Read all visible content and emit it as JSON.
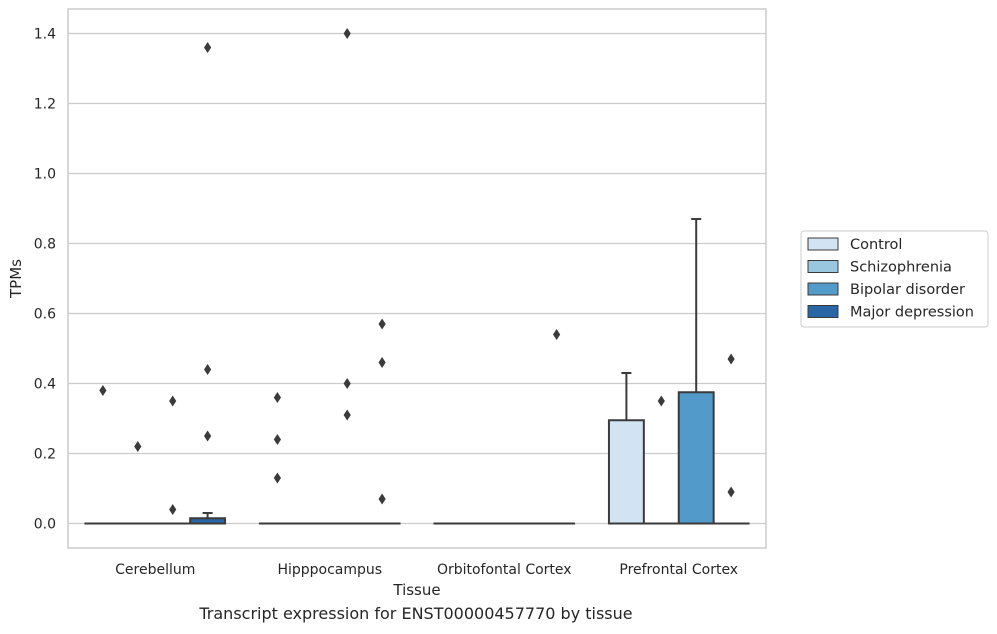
{
  "caption": "Transcript expression for ENST00000457770 by tissue",
  "colors": {
    "Control": "#d2e3f1",
    "Schizophrenia": "#9ac7e0",
    "Bipolar disorder": "#519ac9",
    "Major depression": "#2866a5",
    "edge": "#3b3b3b",
    "grid": "#cccccc"
  },
  "chart_data": {
    "type": "bar",
    "xlabel": "Tissue",
    "ylabel": "TPMs",
    "ylim": [
      -0.07,
      1.47
    ],
    "yticks": [
      "0.0",
      "0.2",
      "0.4",
      "0.6",
      "0.8",
      "1.0",
      "1.2",
      "1.4"
    ],
    "grid": "horizontal",
    "legend_position": "right",
    "categories": [
      "Cerebellum",
      "Hipppocampus",
      "Orbitofontal Cortex",
      "Prefrontal Cortex"
    ],
    "series": [
      {
        "name": "Control",
        "values": [
          0,
          0,
          0,
          0.295
        ],
        "error_upper": [
          null,
          null,
          null,
          0.43
        ]
      },
      {
        "name": "Schizophrenia",
        "values": [
          0,
          0,
          0,
          0
        ],
        "error_upper": [
          null,
          null,
          null,
          null
        ]
      },
      {
        "name": "Bipolar disorder",
        "values": [
          0,
          0,
          0,
          0.375
        ],
        "error_upper": [
          null,
          null,
          null,
          0.87
        ]
      },
      {
        "name": "Major depression",
        "values": [
          0.015,
          0,
          0,
          0
        ],
        "error_upper": [
          0.03,
          null,
          null,
          null
        ]
      }
    ],
    "outliers": [
      {
        "category": 0,
        "series": 0,
        "values": [
          0.38
        ]
      },
      {
        "category": 0,
        "series": 1,
        "values": [
          0.22
        ]
      },
      {
        "category": 0,
        "series": 2,
        "values": [
          0.35,
          0.04
        ]
      },
      {
        "category": 0,
        "series": 3,
        "values": [
          1.36,
          0.44,
          0.25
        ]
      },
      {
        "category": 1,
        "series": 0,
        "values": [
          0.36,
          0.24,
          0.13
        ]
      },
      {
        "category": 1,
        "series": 2,
        "values": [
          1.4,
          0.4,
          0.31
        ]
      },
      {
        "category": 1,
        "series": 3,
        "values": [
          0.57,
          0.46,
          0.07
        ]
      },
      {
        "category": 2,
        "series": 3,
        "values": [
          0.54
        ]
      },
      {
        "category": 3,
        "series": 1,
        "values": [
          0.35
        ]
      },
      {
        "category": 3,
        "series": 3,
        "values": [
          0.47,
          0.09
        ]
      }
    ]
  }
}
